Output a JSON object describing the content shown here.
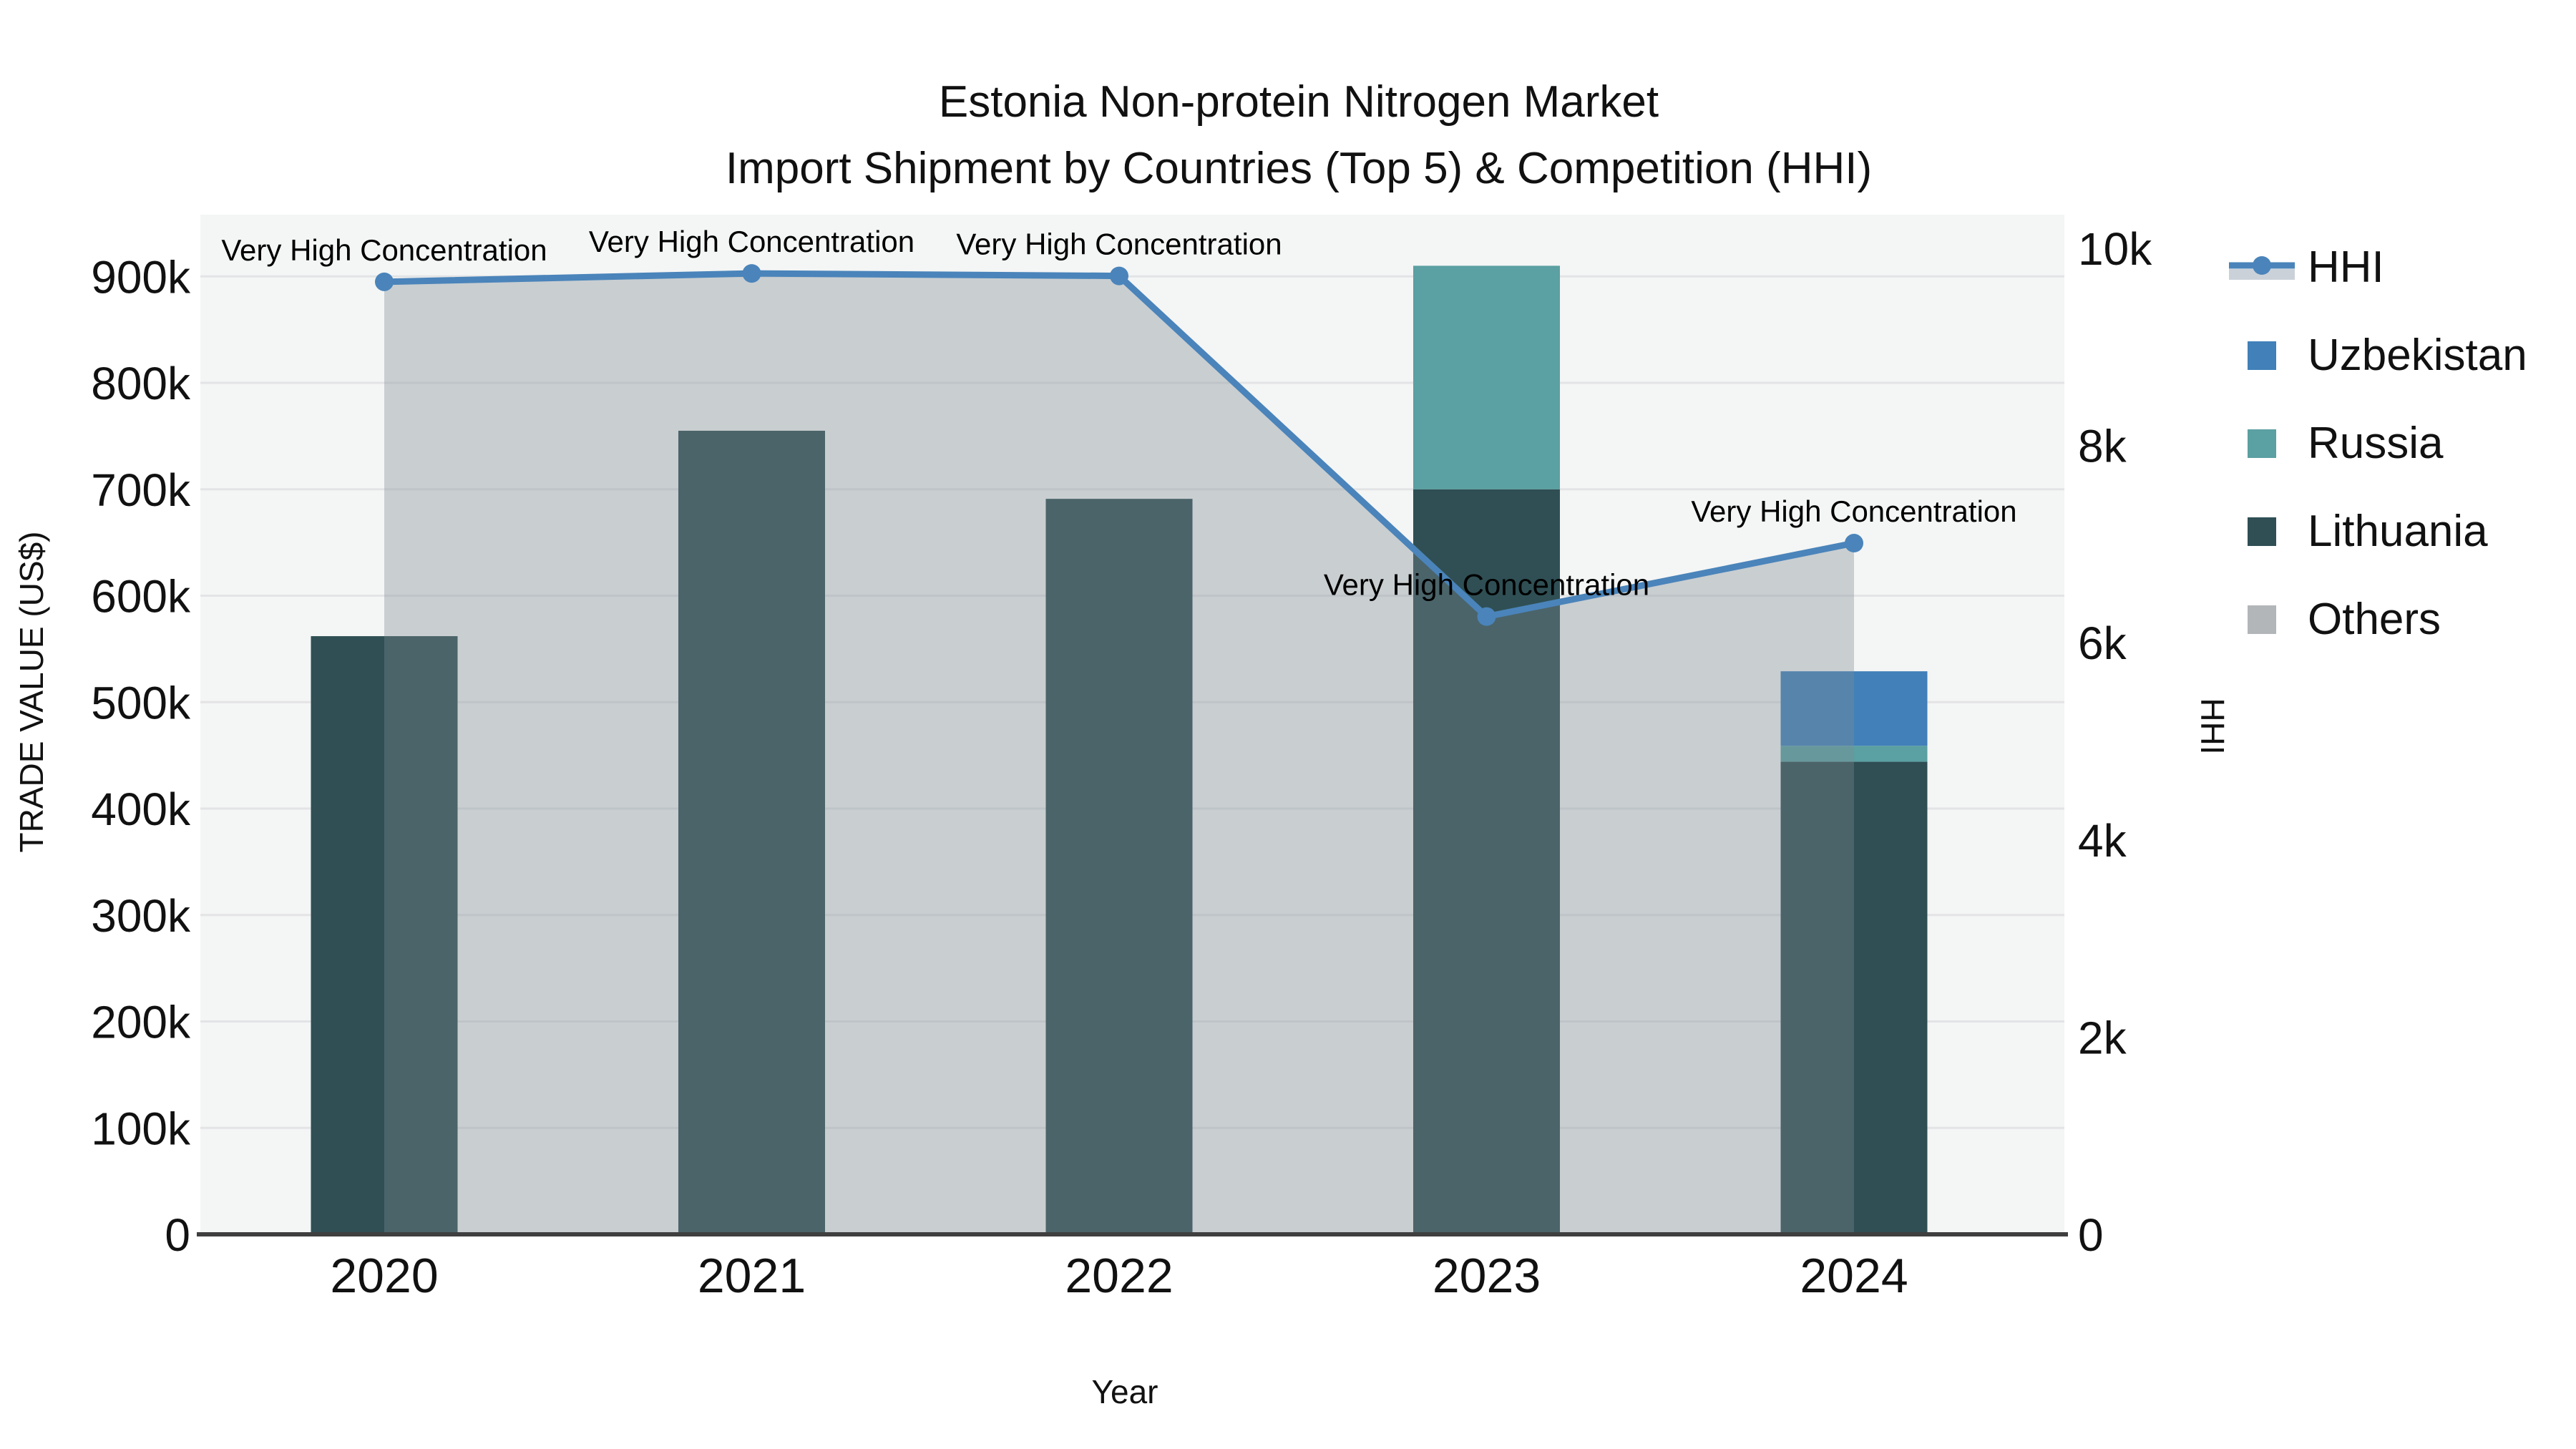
{
  "title": {
    "line1": "Estonia Non-protein Nitrogen Market",
    "line2": "Import Shipment by Countries (Top 5) & Competition (HHI)"
  },
  "axes": {
    "x": {
      "label": "Year",
      "ticks": [
        "2020",
        "2021",
        "2022",
        "2023",
        "2024"
      ]
    },
    "left": {
      "label": "TRADE VALUE (US$)",
      "ticks": [
        {
          "label": "0",
          "value": 0
        },
        {
          "label": "100k",
          "value": 100000
        },
        {
          "label": "200k",
          "value": 200000
        },
        {
          "label": "300k",
          "value": 300000
        },
        {
          "label": "400k",
          "value": 400000
        },
        {
          "label": "500k",
          "value": 500000
        },
        {
          "label": "600k",
          "value": 600000
        },
        {
          "label": "700k",
          "value": 700000
        },
        {
          "label": "800k",
          "value": 800000
        },
        {
          "label": "900k",
          "value": 900000
        }
      ]
    },
    "right": {
      "label": "HHI",
      "ticks": [
        {
          "label": "0",
          "value": 0
        },
        {
          "label": "2k",
          "value": 2000
        },
        {
          "label": "4k",
          "value": 4000
        },
        {
          "label": "6k",
          "value": 6000
        },
        {
          "label": "8k",
          "value": 8000
        },
        {
          "label": "10k",
          "value": 10000
        }
      ]
    }
  },
  "legend": {
    "items": [
      {
        "label": "HHI",
        "type": "line",
        "color": "#4a84ba"
      },
      {
        "label": "Uzbekistan",
        "type": "swatch",
        "color": "#4180b9"
      },
      {
        "label": "Russia",
        "type": "swatch",
        "color": "#5ba0a2"
      },
      {
        "label": "Lithuania",
        "type": "swatch",
        "color": "#2f4f54"
      },
      {
        "label": "Others",
        "type": "swatch",
        "color": "#b3b6b8"
      }
    ]
  },
  "chart_data": [
    {
      "type": "bar",
      "stacked": true,
      "categories": [
        "2020",
        "2021",
        "2022",
        "2023",
        "2024"
      ],
      "series": [
        {
          "name": "Lithuania",
          "color": "#2f4f54",
          "values": [
            562000,
            755000,
            691000,
            700000,
            444000
          ]
        },
        {
          "name": "Russia",
          "color": "#5ba0a2",
          "values": [
            0,
            0,
            0,
            210000,
            15000
          ]
        },
        {
          "name": "Uzbekistan",
          "color": "#4180b9",
          "values": [
            0,
            0,
            0,
            0,
            70000
          ]
        },
        {
          "name": "Others",
          "color": "#b3b6b8",
          "values": [
            0,
            0,
            0,
            0,
            0
          ]
        }
      ],
      "title": "Estonia Non-protein Nitrogen Market — Import Shipment by Countries (Top 5) & Competition (HHI)",
      "xlabel": "Year",
      "ylabel": "TRADE VALUE (US$)",
      "ylim": [
        0,
        958000
      ],
      "grid": true,
      "plot_background": "#f4f5f5",
      "gridline_color": "#e3e4e6"
    },
    {
      "type": "line",
      "name": "HHI",
      "x": [
        "2020",
        "2021",
        "2022",
        "2023",
        "2024"
      ],
      "values": [
        9660,
        9745,
        9720,
        6265,
        7010
      ],
      "color": "#4a84ba",
      "marker": "circle",
      "area_fill": "rgba(124,138,148,0.36)",
      "yaxis": "right",
      "ylabel": "HHI",
      "ylim": [
        0,
        10341
      ],
      "legend_position": "right",
      "annotations": [
        "Very High Concentration",
        "Very High Concentration",
        "Very High Concentration",
        "Very High Concentration",
        "Very High Concentration"
      ]
    }
  ]
}
